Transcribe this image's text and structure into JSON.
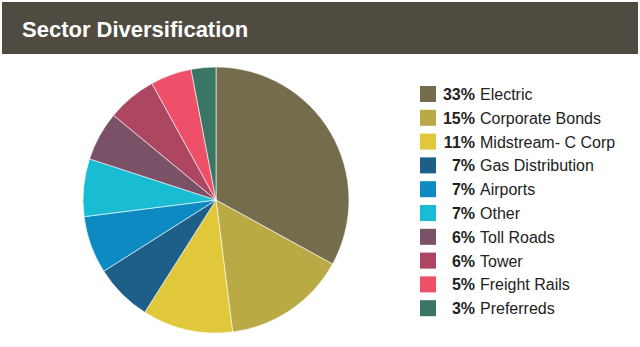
{
  "chart_data": {
    "type": "pie",
    "title": "Sector Diversification",
    "categories": [
      "Electric",
      "Corporate Bonds",
      "Midstream- C Corp",
      "Gas Distribution",
      "Airports",
      "Other",
      "Toll Roads",
      "Tower",
      "Freight Rails",
      "Preferreds"
    ],
    "values": [
      33,
      15,
      11,
      7,
      7,
      7,
      6,
      6,
      5,
      3
    ],
    "value_labels": [
      "33%",
      "15%",
      "11%",
      "7%",
      "7%",
      "7%",
      "6%",
      "6%",
      "5%",
      "3%"
    ],
    "colors": [
      "#756c4e",
      "#b9aa45",
      "#e0c83a",
      "#1d5f88",
      "#0e8ac3",
      "#19bdd3",
      "#7b5168",
      "#ad4660",
      "#ef5069",
      "#3b7565"
    ],
    "legend": "right"
  }
}
